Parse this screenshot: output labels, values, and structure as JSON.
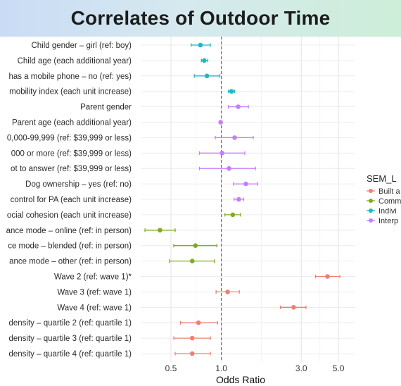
{
  "chart_data": {
    "type": "scatter",
    "title": "Correlates of Outdoor Time",
    "xlabel": "Odds Ratio",
    "ylabel": "",
    "x_scale": "log",
    "xlim": [
      0.33,
      6.3
    ],
    "x_ticks": [
      0.5,
      1.0,
      3.0,
      5.0
    ],
    "x_tick_labels": [
      "0.5",
      "1.0",
      "3.0",
      "5.0"
    ],
    "reference_line": 1.0,
    "grid": true,
    "legend": {
      "title": "SEM_L",
      "placement": "right",
      "entries": [
        {
          "key": "built",
          "label": "Built a",
          "color": "#f07f73"
        },
        {
          "key": "community",
          "label": "Comm",
          "color": "#7cae1f"
        },
        {
          "key": "individual",
          "label": "Indivi",
          "color": "#1fb7c2"
        },
        {
          "key": "interpersonal",
          "label": "Interp",
          "color": "#c77cff"
        }
      ]
    },
    "rows": [
      {
        "label": "Child gender – girl (ref: boy)",
        "group": "individual",
        "or": 0.75,
        "lo": 0.66,
        "hi": 0.86
      },
      {
        "label": "Child age (each additional year)",
        "group": "individual",
        "or": 0.79,
        "lo": 0.76,
        "hi": 0.83
      },
      {
        "label": "has a mobile phone – no (ref: yes)",
        "group": "individual",
        "or": 0.82,
        "lo": 0.69,
        "hi": 0.98
      },
      {
        "label": "mobility index (each unit increase)",
        "group": "individual",
        "or": 1.15,
        "lo": 1.1,
        "hi": 1.2
      },
      {
        "label": "Parent gender",
        "group": "interpersonal",
        "or": 1.26,
        "lo": 1.1,
        "hi": 1.45
      },
      {
        "label": "Parent age (each additional year)",
        "group": "interpersonal",
        "or": 0.99,
        "lo": 0.98,
        "hi": 1.0
      },
      {
        "label": "0,000-99,999 (ref: $39,999 or less)",
        "group": "interpersonal",
        "or": 1.2,
        "lo": 0.92,
        "hi": 1.55
      },
      {
        "label": "000 or more (ref: $39,999 or less)",
        "group": "interpersonal",
        "or": 1.01,
        "lo": 0.74,
        "hi": 1.38
      },
      {
        "label": "ot to answer (ref: $39,999 or less)",
        "group": "interpersonal",
        "or": 1.11,
        "lo": 0.74,
        "hi": 1.6
      },
      {
        "label": "Dog ownership – yes (ref: no)",
        "group": "interpersonal",
        "or": 1.4,
        "lo": 1.18,
        "hi": 1.65
      },
      {
        "label": "control for PA (each unit increase)",
        "group": "interpersonal",
        "or": 1.27,
        "lo": 1.19,
        "hi": 1.36
      },
      {
        "label": "ocial cohesion (each unit increase)",
        "group": "community",
        "or": 1.17,
        "lo": 1.05,
        "hi": 1.3
      },
      {
        "label": "ance mode – online (ref: in person)",
        "group": "community",
        "or": 0.43,
        "lo": 0.35,
        "hi": 0.53
      },
      {
        "label": "ce mode – blended (ref: in person)",
        "group": "community",
        "or": 0.7,
        "lo": 0.52,
        "hi": 0.94
      },
      {
        "label": "ance mode – other (ref: in person)",
        "group": "community",
        "or": 0.67,
        "lo": 0.49,
        "hi": 0.91
      },
      {
        "label": "Wave 2 (ref: wave 1)*",
        "group": "built",
        "or": 4.3,
        "lo": 3.65,
        "hi": 5.1
      },
      {
        "label": "Wave 3 (ref: wave 1)",
        "group": "built",
        "or": 1.09,
        "lo": 0.93,
        "hi": 1.28
      },
      {
        "label": "Wave 4 (ref: wave 1)",
        "group": "built",
        "or": 2.7,
        "lo": 2.25,
        "hi": 3.2
      },
      {
        "label": "density – quartile 2 (ref: quartile 1)",
        "group": "built",
        "or": 0.73,
        "lo": 0.57,
        "hi": 0.95
      },
      {
        "label": "density – quartile 3 (ref: quartile 1)",
        "group": "built",
        "or": 0.67,
        "lo": 0.52,
        "hi": 0.86
      },
      {
        "label": "density – quartile 4 (ref: quartile 1)",
        "group": "built",
        "or": 0.67,
        "lo": 0.53,
        "hi": 0.86
      }
    ]
  }
}
